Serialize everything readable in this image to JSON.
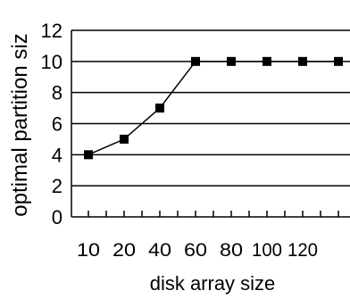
{
  "chart_data": {
    "type": "line",
    "title": "",
    "xlabel": "disk array size",
    "ylabel": "optimal partition siz",
    "categories": [
      "10",
      "20",
      "40",
      "60",
      "80",
      "100",
      "120",
      ""
    ],
    "series": [
      {
        "values": [
          4,
          5,
          7,
          10,
          10,
          10,
          10,
          10
        ]
      }
    ],
    "ylim": [
      0,
      12
    ],
    "yticks": [
      "0",
      "2",
      "4",
      "6",
      "8",
      "10",
      "12"
    ],
    "grid": "horizontal",
    "legend": "none",
    "colors": {
      "line": "#000000",
      "marker": "#000000",
      "grid": "#000000"
    }
  }
}
